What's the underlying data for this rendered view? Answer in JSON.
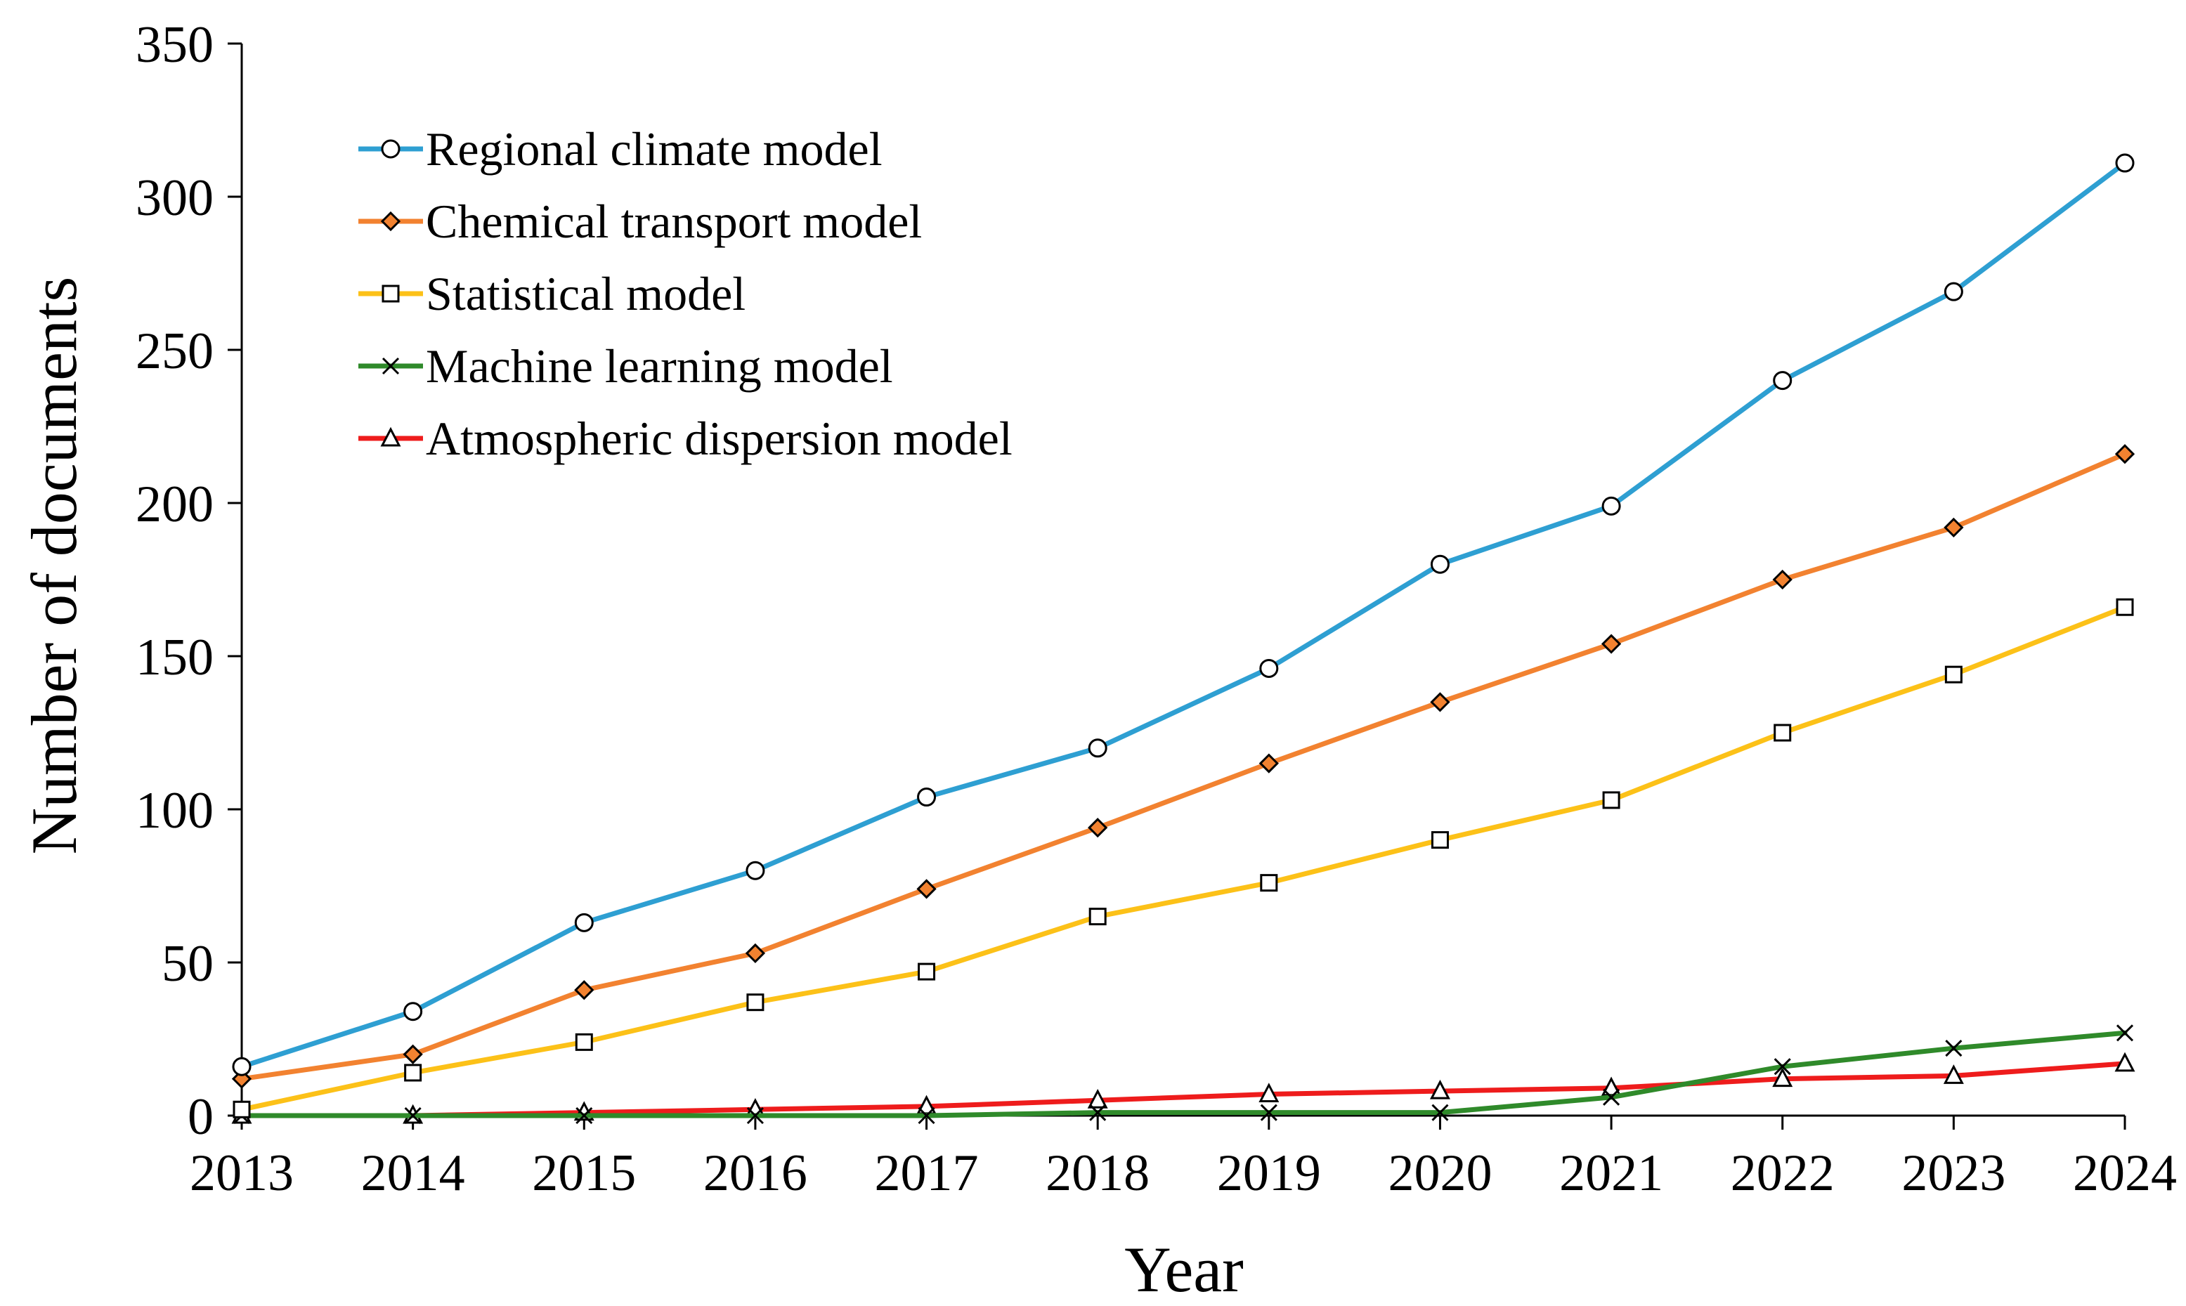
{
  "chart_data": {
    "type": "line",
    "title": "",
    "xlabel": "Year",
    "ylabel": "Number of documents",
    "categories": [
      "2013",
      "2014",
      "2015",
      "2016",
      "2017",
      "2018",
      "2019",
      "2020",
      "2021",
      "2022",
      "2023",
      "2024"
    ],
    "ylim": [
      0,
      350
    ],
    "yticks": [
      0,
      50,
      100,
      150,
      200,
      250,
      300,
      350
    ],
    "ytick_labels": [
      "0",
      "50",
      "100",
      "150",
      "200",
      "250",
      "300",
      "350"
    ],
    "grid": false,
    "legend_position": "top-left",
    "series": [
      {
        "name": "Regional climate model",
        "color": "#2e9fd2",
        "marker": "circle",
        "values": [
          16,
          34,
          63,
          80,
          104,
          120,
          146,
          180,
          199,
          240,
          269,
          311
        ]
      },
      {
        "name": "Chemical transport model",
        "color": "#f28230",
        "marker": "diamond",
        "values": [
          12,
          20,
          41,
          53,
          74,
          94,
          115,
          135,
          154,
          175,
          192,
          216
        ]
      },
      {
        "name": "Statistical model",
        "color": "#fcc118",
        "marker": "square",
        "values": [
          2,
          14,
          24,
          37,
          47,
          65,
          76,
          90,
          103,
          125,
          144,
          166
        ]
      },
      {
        "name": "Machine learning model",
        "color": "#2f8a2a",
        "marker": "x",
        "values": [
          0,
          0,
          0,
          0,
          0,
          1,
          1,
          1,
          6,
          16,
          22,
          27
        ]
      },
      {
        "name": "Atmospheric dispersion model",
        "color": "#ee1c1c",
        "marker": "triangle",
        "values": [
          0,
          0,
          1,
          2,
          3,
          5,
          7,
          8,
          9,
          12,
          13,
          17
        ]
      }
    ]
  }
}
